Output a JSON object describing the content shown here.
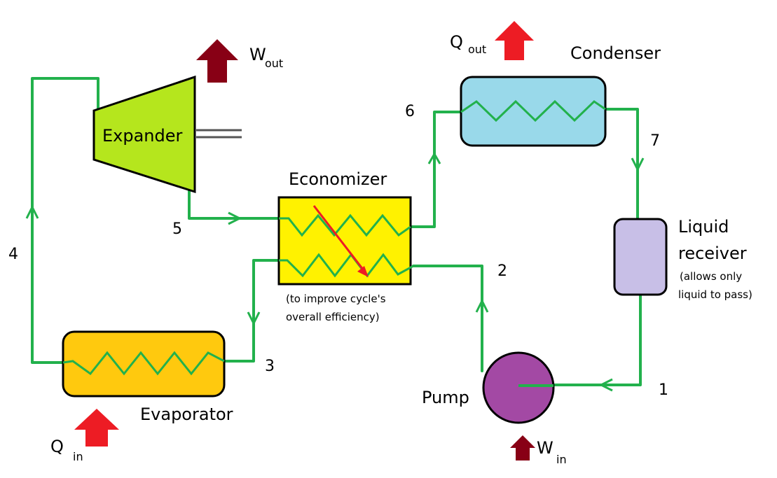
{
  "components": {
    "expander": "Expander",
    "economizer": "Economizer",
    "condenser": "Condenser",
    "evaporator": "Evaporator",
    "pump": "Pump",
    "liquid_receiver": "Liquid receiver",
    "liquid_receiver_line1": "Liquid",
    "liquid_receiver_line2": "receiver"
  },
  "notes": {
    "receiver_line1": "(allows only",
    "receiver_line2": "liquid to pass)",
    "economizer_line1": "(to improve cycle's",
    "economizer_line2": "overall efficiency)"
  },
  "energy_flows": {
    "w_out": {
      "base": "W",
      "sub": "out"
    },
    "q_out": {
      "base": "Q",
      "sub": "out"
    },
    "q_in": {
      "base": "Q",
      "sub": "in"
    },
    "w_in": {
      "base": "W",
      "sub": "in"
    }
  },
  "state_points": [
    "1",
    "2",
    "3",
    "4",
    "5",
    "6",
    "7"
  ],
  "colors": {
    "pipe": "#22b14c",
    "expander": "#b5e61d",
    "economizer": "#fff200",
    "condenser": "#99d9ea",
    "evaporator": "#ffc90e",
    "pump": "#a349a4",
    "liquid_receiver": "#c8bfe7",
    "heat_arrow": "#ed1c24",
    "work_arrow": "#880015"
  }
}
